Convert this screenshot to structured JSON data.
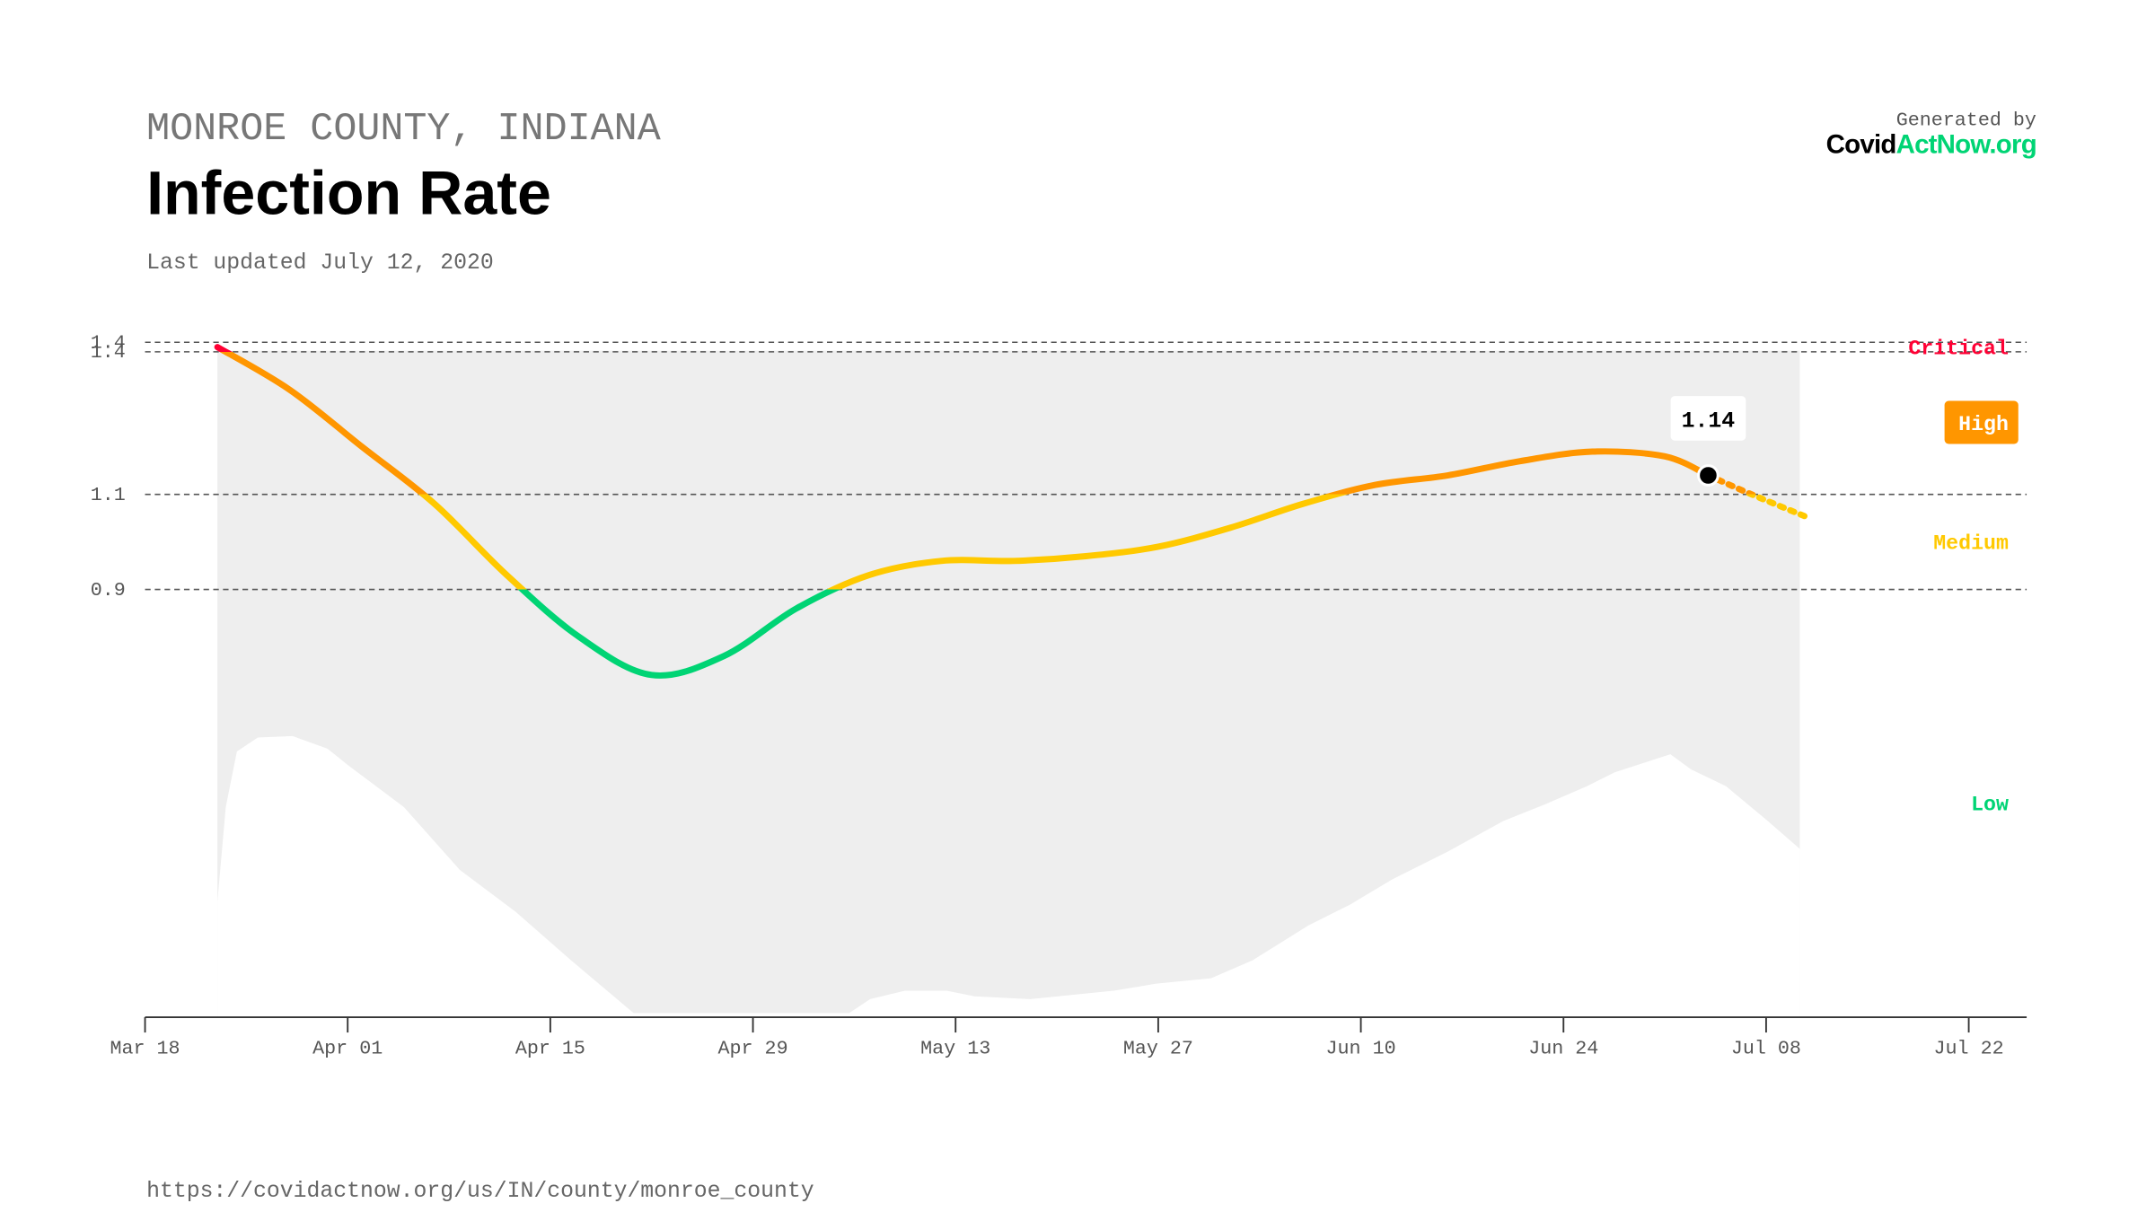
{
  "header": {
    "subtitle": "MONROE COUNTY, INDIANA",
    "title": "Infection Rate",
    "updated": "Last updated July 12, 2020",
    "generated_by": "Generated by",
    "logo_left": "Covid",
    "logo_right": "ActNow.org"
  },
  "footer": {
    "url": "https://covidactnow.org/us/IN/county/monroe_county"
  },
  "chart_data": {
    "type": "line",
    "x": [
      "03-23",
      "03-28",
      "04-02",
      "04-07",
      "04-12",
      "04-17",
      "04-22",
      "04-27",
      "05-02",
      "05-07",
      "05-12",
      "05-17",
      "05-22",
      "05-27",
      "06-01",
      "06-06",
      "06-11",
      "06-16",
      "06-21",
      "06-26",
      "07-01",
      "07-04"
    ],
    "values": [
      1.41,
      1.32,
      1.2,
      1.08,
      0.93,
      0.8,
      0.72,
      0.76,
      0.86,
      0.93,
      0.96,
      0.96,
      0.97,
      0.99,
      1.03,
      1.08,
      1.12,
      1.14,
      1.17,
      1.19,
      1.18,
      1.14
    ],
    "projection_x": [
      "07-04",
      "07-07",
      "07-11"
    ],
    "projection_values": [
      1.14,
      1.1,
      1.05
    ],
    "current": {
      "x": "07-04",
      "value": 1.14,
      "value_label": "1.14"
    },
    "xlim": [
      "03-18",
      "07-26"
    ],
    "xticks": [
      {
        "value": "03-18",
        "label": "Mar 18"
      },
      {
        "value": "04-01",
        "label": "Apr 01"
      },
      {
        "value": "04-15",
        "label": "Apr 15"
      },
      {
        "value": "04-29",
        "label": "Apr 29"
      },
      {
        "value": "05-13",
        "label": "May 13"
      },
      {
        "value": "05-27",
        "label": "May 27"
      },
      {
        "value": "06-10",
        "label": "Jun 10"
      },
      {
        "value": "06-24",
        "label": "Jun 24"
      },
      {
        "value": "07-08",
        "label": "Jul 08"
      },
      {
        "value": "07-22",
        "label": "Jul 22"
      }
    ],
    "ylim": [
      0,
      1.42
    ],
    "yticks": [
      {
        "value": 1.42,
        "label": "1.4"
      },
      1.4,
      1.1,
      0.9
    ],
    "zones": [
      {
        "name": "Low",
        "range": [
          0,
          0.9
        ],
        "color": "#00d474"
      },
      {
        "name": "Medium",
        "range": [
          0.9,
          1.1
        ],
        "color": "#ffc900"
      },
      {
        "name": "High",
        "range": [
          1.1,
          1.4
        ],
        "color": "#ff9600"
      },
      {
        "name": "Critical",
        "range": [
          1.4,
          1.42
        ],
        "color": "#ff0034"
      }
    ]
  }
}
